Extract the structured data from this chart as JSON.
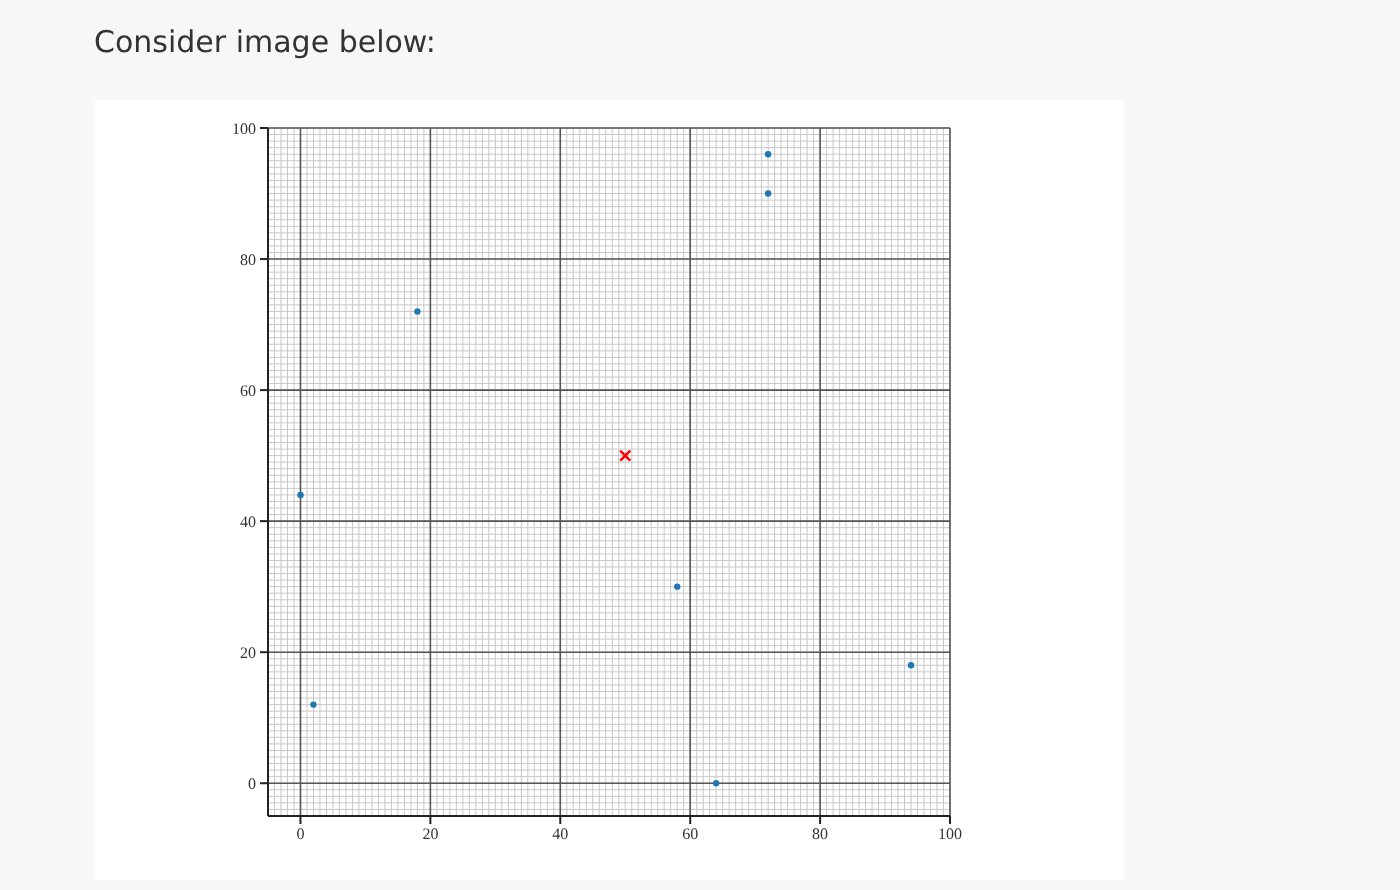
{
  "chart_data": {
    "type": "scatter",
    "title": "Consider image below:",
    "xlim": [
      -5,
      100
    ],
    "ylim": [
      -5,
      100
    ],
    "xticks": [
      0,
      20,
      40,
      60,
      80,
      100
    ],
    "yticks": [
      0,
      20,
      40,
      60,
      80,
      100
    ],
    "grid": true,
    "series": [
      {
        "color": "#1f77b4",
        "marker": "circle",
        "x": [
          0,
          2,
          18,
          58,
          64,
          72,
          72,
          94
        ],
        "values": [
          44,
          12,
          72,
          30,
          0,
          96,
          90,
          18
        ]
      },
      {
        "color": "#ff0000",
        "marker": "cross",
        "x": [
          50
        ],
        "values": [
          50
        ]
      }
    ]
  }
}
